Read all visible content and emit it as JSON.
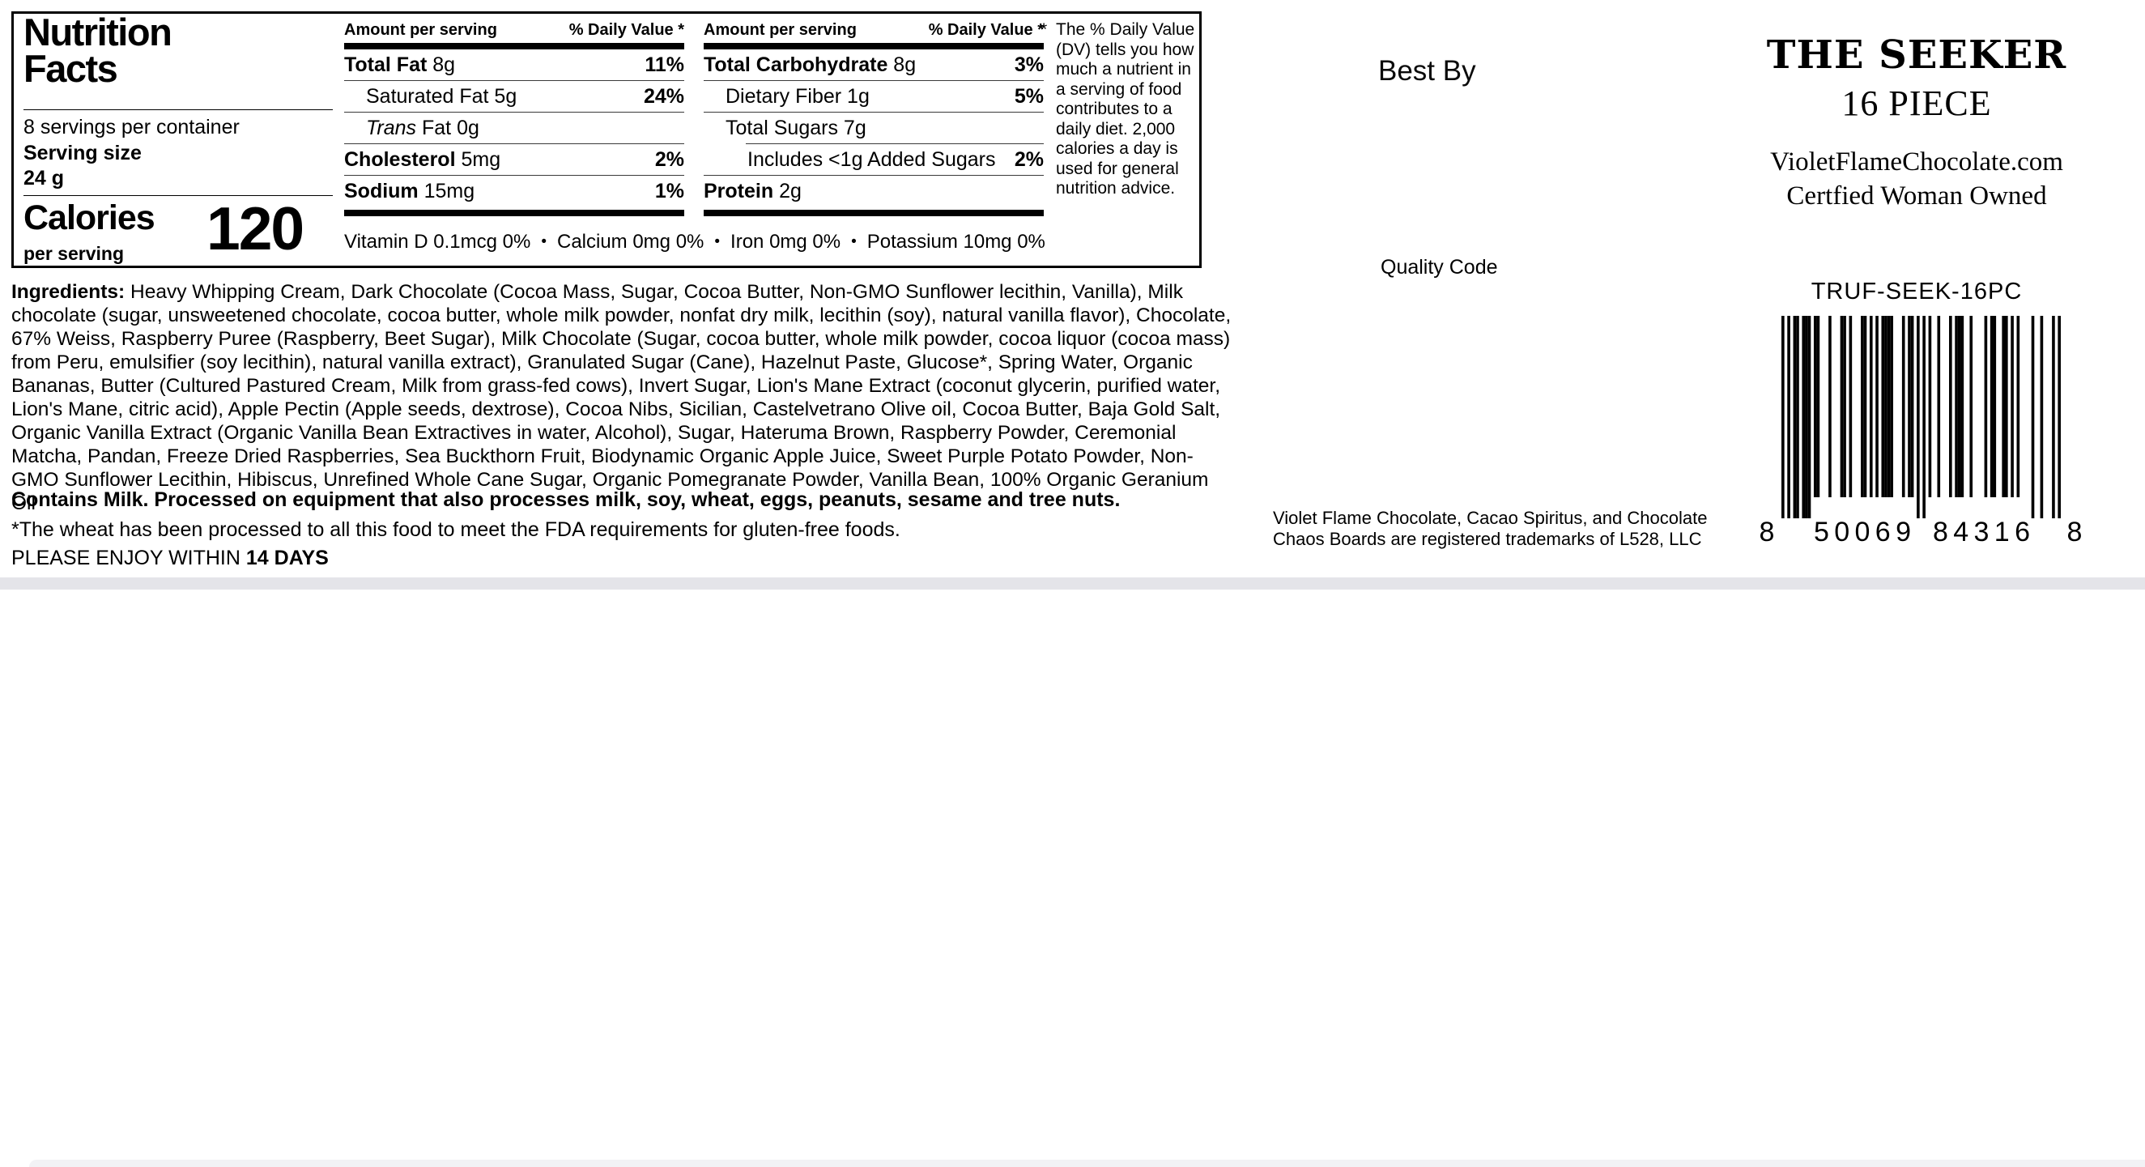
{
  "panel": {
    "title_line1": "Nutrition",
    "title_line2": "Facts",
    "servings_per_container": "8 servings per container",
    "serving_size_label": "Serving size",
    "serving_size_value": "24 g",
    "calories_label": "Calories",
    "calories_sublabel": "per serving",
    "calories_value": "120",
    "amount_header": "Amount per serving",
    "dv_header": "% Daily Value *",
    "columns": [
      [
        {
          "prefix": "Total Fat",
          "style": "bold",
          "rest": " 8g",
          "dv": "11%",
          "indent": 0
        },
        {
          "prefix": "Saturated Fat",
          "style": "plain",
          "rest": " 5g",
          "dv": "24%",
          "indent": 1
        },
        {
          "prefix": "Trans",
          "style": "italic",
          "rest": " Fat 0g",
          "dv": "",
          "indent": 1
        },
        {
          "prefix": "Cholesterol",
          "style": "bold",
          "rest": " 5mg",
          "dv": "2%",
          "indent": 0
        },
        {
          "prefix": "Sodium",
          "style": "bold",
          "rest": " 15mg",
          "dv": "1%",
          "indent": 0
        }
      ],
      [
        {
          "prefix": "Total Carbohydrate",
          "style": "bold",
          "rest": " 8g",
          "dv": "3%",
          "indent": 0
        },
        {
          "prefix": "Dietary Fiber",
          "style": "plain",
          "rest": " 1g",
          "dv": "5%",
          "indent": 1
        },
        {
          "prefix": "Total Sugars",
          "style": "plain",
          "rest": " 7g",
          "dv": "",
          "indent": 1,
          "rule_indent": 52
        },
        {
          "prefix": "Includes <1g Added Sugars",
          "style": "plain",
          "rest": "",
          "dv": "2%",
          "indent": 2
        },
        {
          "prefix": "Protein",
          "style": "bold",
          "rest": " 2g",
          "dv": "",
          "indent": 0
        }
      ]
    ],
    "vitamins": [
      "Vitamin D 0.1mcg 0%",
      "Calcium 0mg 0%",
      "Iron 0mg 0%",
      "Potassium 10mg 0%"
    ],
    "footnote_mark": "*",
    "footnote": "The % Daily Value (DV) tells you how much a nutrient in a serving of food contributes to a daily diet. 2,000 calories a day is used for general nutrition advice."
  },
  "ingredients": {
    "label": "Ingredients: ",
    "text": "Heavy Whipping Cream, Dark Chocolate (Cocoa Mass, Sugar, Cocoa Butter, Non-GMO Sunflower lecithin, Vanilla), Milk chocolate (sugar, unsweetened chocolate, cocoa butter, whole milk powder, nonfat dry milk, lecithin (soy), natural vanilla flavor), Chocolate, 67% Weiss, Raspberry Puree (Raspberry, Beet Sugar), Milk Chocolate (Sugar, cocoa butter, whole milk powder, cocoa liquor (cocoa mass) from Peru, emulsifier (soy lecithin), natural vanilla extract), Granulated Sugar (Cane), Hazelnut Paste, Glucose*, Spring Water, Organic Bananas, Butter (Cultured Pastured Cream, Milk from grass-fed cows), Invert Sugar, Lion's Mane Extract (coconut glycerin, purified water, Lion's Mane, citric acid), Apple Pectin (Apple seeds, dextrose), Cocoa Nibs, Sicilian, Castelvetrano Olive oil, Cocoa Butter, Baja Gold Salt, Organic Vanilla Extract (Organic Vanilla Bean Extractives in water, Alcohol), Sugar, Hateruma Brown, Raspberry Powder, Ceremonial Matcha, Pandan, Freeze Dried Raspberries, Sea Buckthorn Fruit, Biodynamic Organic Apple Juice, Sweet Purple Potato Powder, Non-GMO Sunflower Lecithin, Hibiscus, Unrefined Whole Cane Sugar, Organic Pomegranate Powder, Vanilla Bean, 100% Organic Geranium Oil"
  },
  "statements": {
    "contains": "Contains Milk. Processed on equipment that also processes milk, soy, wheat, eggs, peanuts, sesame and tree nuts.",
    "gluten": "*The wheat has been processed to all this food to meet the FDA requirements for gluten-free foods.",
    "enjoy_prefix": "PLEASE ENJOY WITHIN ",
    "enjoy_bold": "14 DAYS"
  },
  "right": {
    "best_by": "Best By",
    "quality_code": "Quality Code",
    "brand_title": "THE SEEKER",
    "piece_count": "16 PIECE",
    "website": "VioletFlameChocolate.com",
    "certification": "Certfied Woman Owned",
    "sku": "TRUF-SEEK-16PC",
    "barcode": {
      "value": "850069843168",
      "display": [
        "8",
        "50069",
        "84316",
        "8"
      ]
    },
    "trademark": [
      "Violet Flame Chocolate, Cacao Spiritus, and Chocolate",
      "Chaos Boards are registered trademarks of L528, LLC"
    ]
  },
  "colors": {
    "text": "#000000",
    "background": "#ffffff",
    "rule": "#3a3a3a",
    "bottom_strip": "#e4e4e9"
  }
}
